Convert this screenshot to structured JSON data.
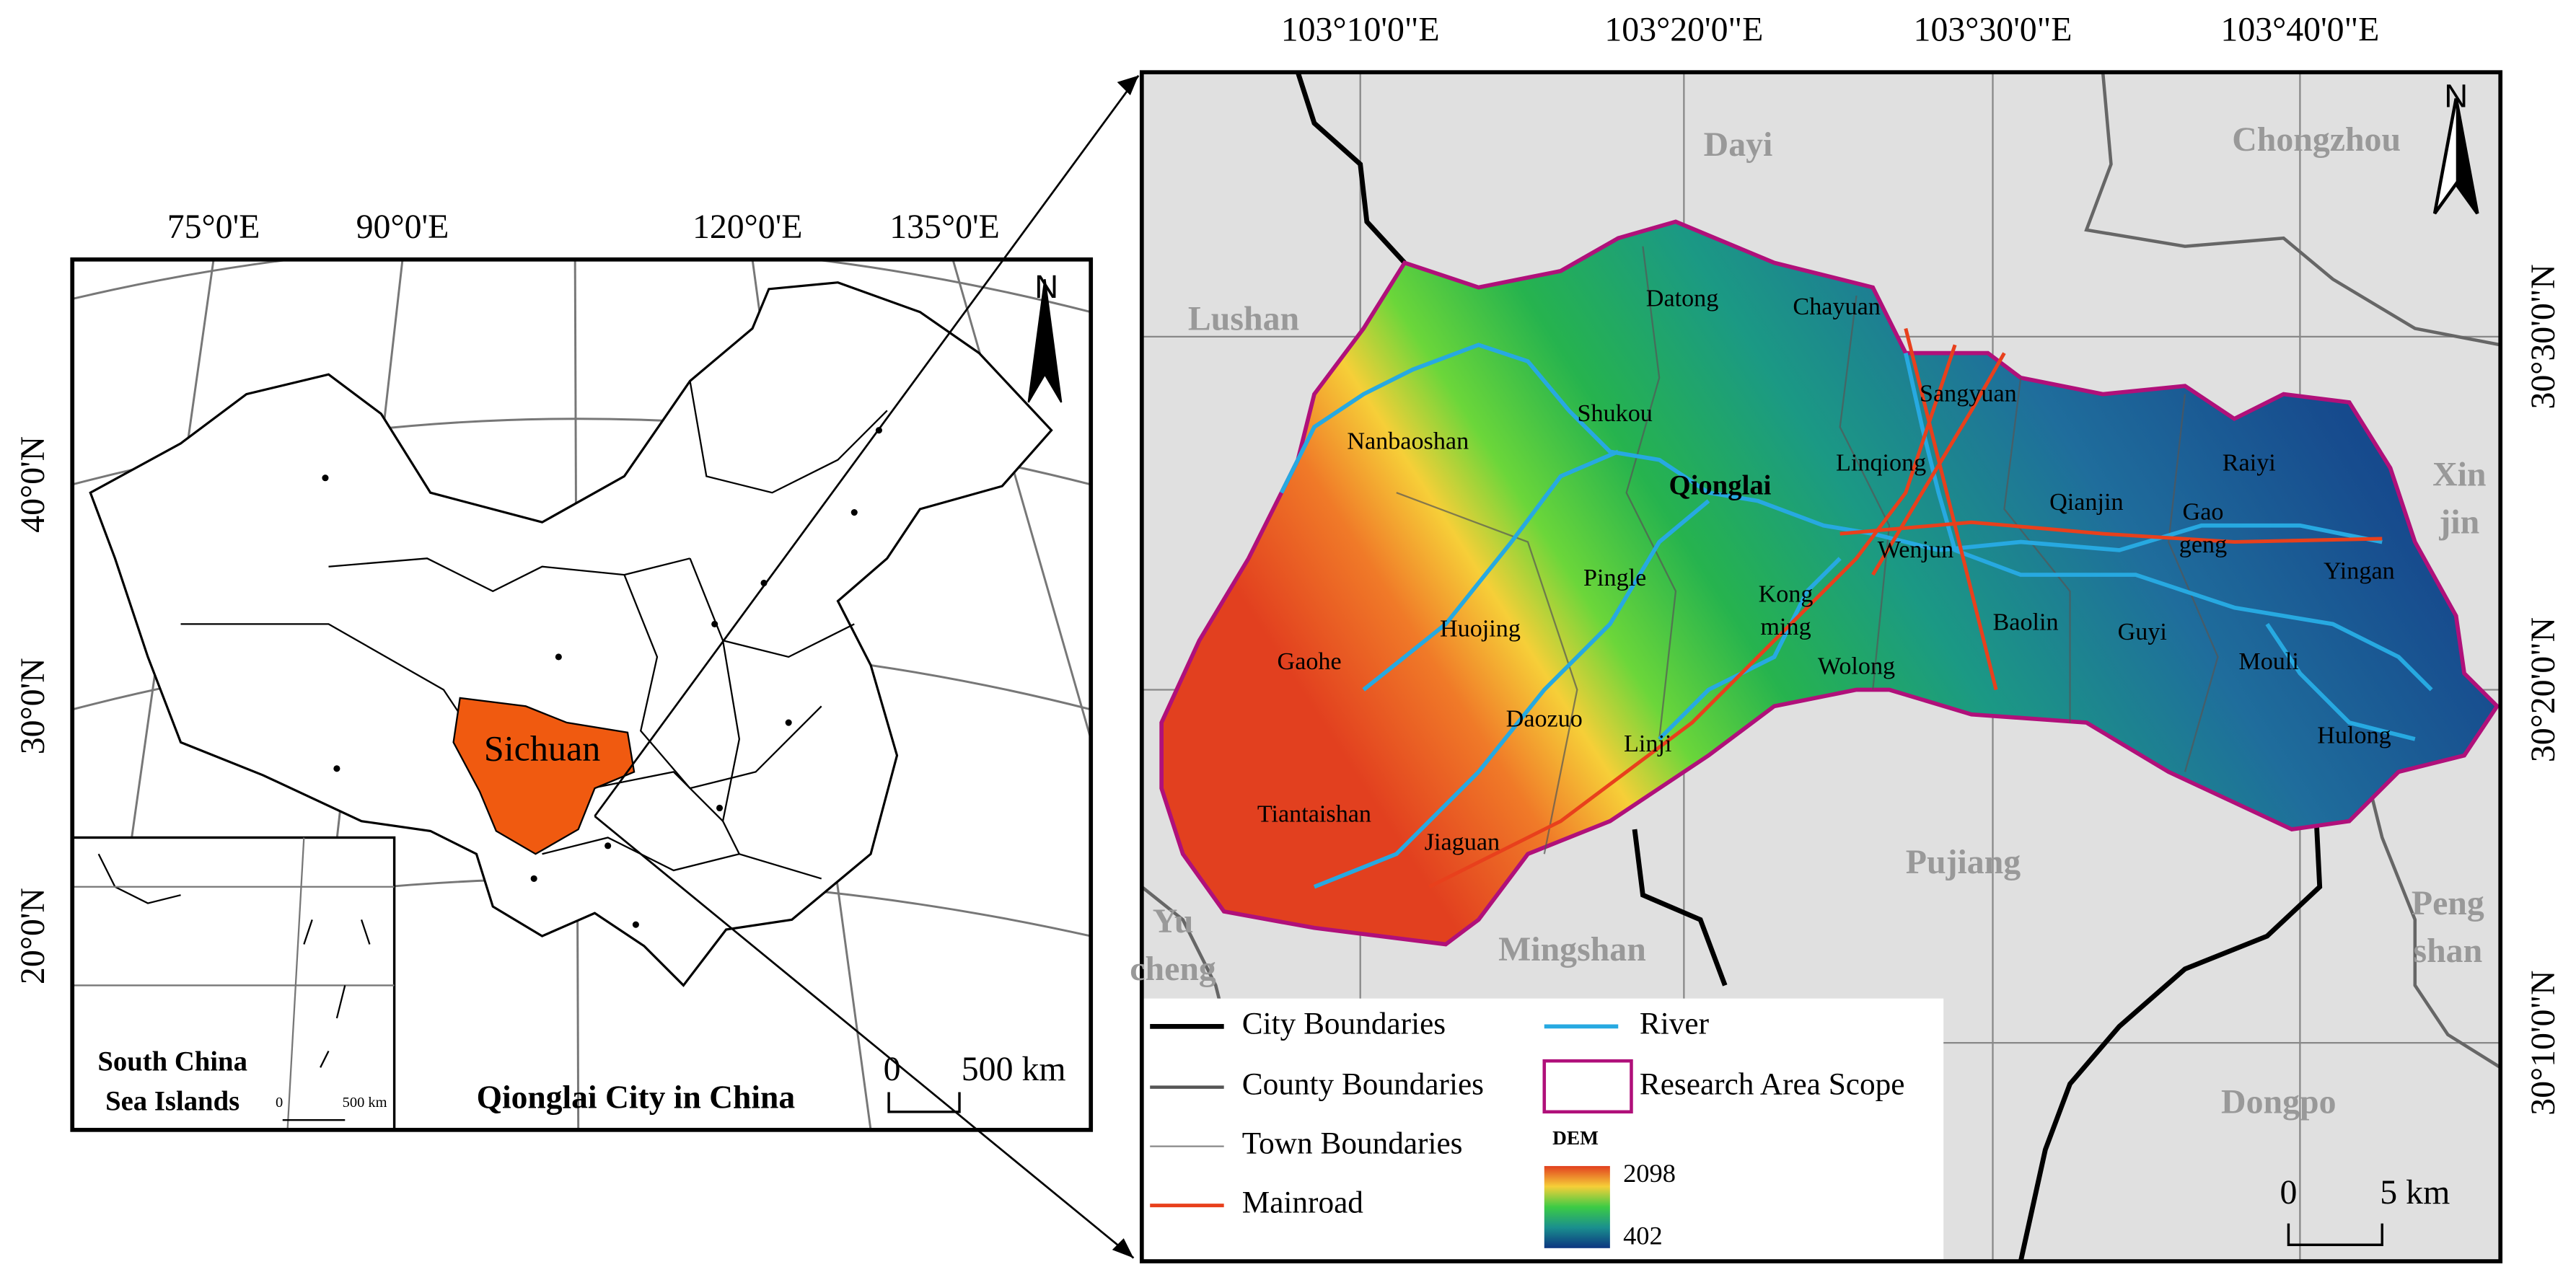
{
  "left_map": {
    "longitude_labels": [
      "75°0'E",
      "90°0'E",
      "120°0'E",
      "135°0'E"
    ],
    "latitude_labels": [
      "40°0'N",
      "30°0'N",
      "20°0'N"
    ],
    "north": "N",
    "province": "Sichuan",
    "inset": {
      "label": [
        "South China",
        "Sea Islands"
      ],
      "scale": [
        "0",
        "500 km"
      ]
    },
    "scale": [
      "0",
      "500 km"
    ],
    "title": "Qionglai City in China"
  },
  "right_map": {
    "longitude_labels": [
      "103°10'0\"E",
      "103°20'0\"E",
      "103°30'0\"E",
      "103°40'0\"E"
    ],
    "latitude_labels": [
      "30°30'0\"N",
      "30°20'0\"N",
      "30°10'0\"N"
    ],
    "north": "N",
    "neighbors": [
      [
        "Dayi"
      ],
      [
        "Chongzhou"
      ],
      [
        "Lushan"
      ],
      [
        "Xin",
        "jin"
      ],
      [
        "Yu",
        "cheng"
      ],
      [
        "Pujiang"
      ],
      [
        "Mingshan"
      ],
      [
        "Peng",
        "shan"
      ],
      [
        "Dongpo"
      ]
    ],
    "city": "Qionglai",
    "towns": [
      [
        "Datong"
      ],
      [
        "Chayuan"
      ],
      [
        "Sangyuan"
      ],
      [
        "Shukou"
      ],
      [
        "Nanbaoshan"
      ],
      [
        "Linqiong"
      ],
      [
        "Qianjin"
      ],
      [
        "Raiyi"
      ],
      [
        "Gao",
        "geng"
      ],
      [
        "Wenjun"
      ],
      [
        "Yingan"
      ],
      [
        "Pingle"
      ],
      [
        "Kong",
        "ming"
      ],
      [
        "Huojing"
      ],
      [
        "Baolin"
      ],
      [
        "Guyi"
      ],
      [
        "Gaohe"
      ],
      [
        "Wolong"
      ],
      [
        "Mouli"
      ],
      [
        "Daozuo"
      ],
      [
        "Hulong"
      ],
      [
        "Linji"
      ],
      [
        "Tiantaishan"
      ],
      [
        "Jiaguan"
      ]
    ],
    "legend": [
      "City Boundaries",
      "County Boundaries",
      "Town Boundaries",
      "Mainroad",
      "River",
      "Research Area Scope"
    ],
    "dem": {
      "title": "DEM",
      "max": 2098,
      "min": 402
    },
    "scale": [
      "0",
      "5 km"
    ]
  }
}
